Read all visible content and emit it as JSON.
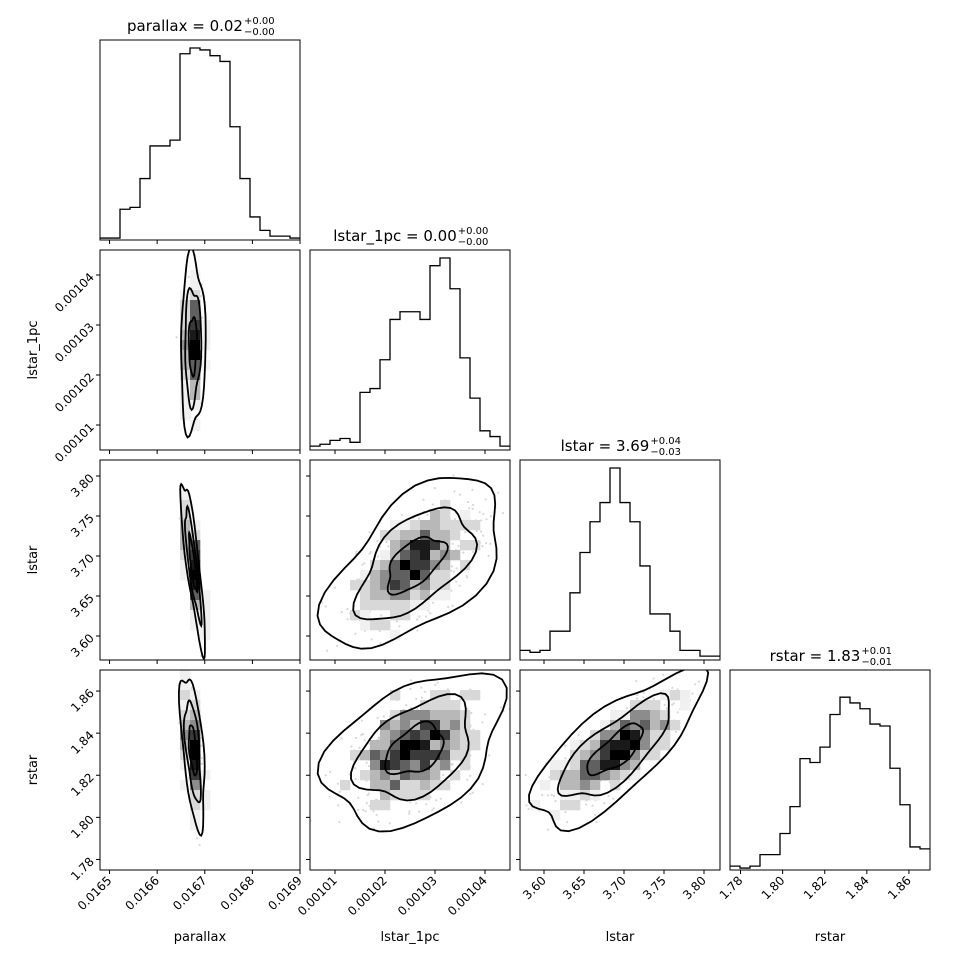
{
  "figure": "corner",
  "chart_data": {
    "type": "corner",
    "parameters": [
      "parallax",
      "lstar_1pc",
      "lstar",
      "rstar"
    ],
    "axis_labels": [
      "parallax",
      "lstar_1pc",
      "lstar",
      "rstar"
    ],
    "ranges": [
      [
        0.01648,
        0.0169
      ],
      [
        0.001005,
        0.001045
      ],
      [
        3.57,
        3.82
      ],
      [
        1.775,
        1.87
      ]
    ],
    "ticks": [
      [
        0.0165,
        0.0166,
        0.0167,
        0.0168,
        0.0169
      ],
      [
        0.00101,
        0.00102,
        0.00103,
        0.00104
      ],
      [
        3.6,
        3.65,
        3.7,
        3.75,
        3.8
      ],
      [
        1.78,
        1.8,
        1.82,
        1.84,
        1.86
      ]
    ],
    "tick_labels": [
      [
        "0.0165",
        "0.0166",
        "0.0167",
        "0.0168",
        "0.0169"
      ],
      [
        "0.00101",
        "0.00102",
        "0.00103",
        "0.00104"
      ],
      [
        "3.60",
        "3.65",
        "3.70",
        "3.75",
        "3.80"
      ],
      [
        "1.78",
        "1.80",
        "1.82",
        "1.84",
        "1.86"
      ]
    ],
    "titles": [
      {
        "name": "parallax",
        "median": "0.02",
        "plus": "+0.00",
        "minus": "−0.00"
      },
      {
        "name": "lstar_1pc",
        "median": "0.00",
        "plus": "+0.00",
        "minus": "−0.00"
      },
      {
        "name": "lstar",
        "median": "3.69",
        "plus": "+0.04",
        "minus": "−0.03"
      },
      {
        "name": "rstar",
        "median": "1.83",
        "plus": "+0.01",
        "minus": "−0.01"
      }
    ],
    "histograms": [
      [
        0.01,
        0.01,
        0.16,
        0.17,
        0.32,
        0.49,
        0.49,
        0.52,
        0.97,
        1.0,
        0.99,
        0.96,
        0.93,
        0.59,
        0.32,
        0.12,
        0.05,
        0.02,
        0.02,
        0.01
      ],
      [
        0.02,
        0.03,
        0.05,
        0.06,
        0.04,
        0.3,
        0.32,
        0.47,
        0.68,
        0.72,
        0.72,
        0.68,
        0.96,
        1.0,
        0.84,
        0.48,
        0.27,
        0.1,
        0.07,
        0.02
      ],
      [
        0.05,
        0.04,
        0.05,
        0.15,
        0.15,
        0.35,
        0.56,
        0.72,
        0.82,
        1.0,
        0.82,
        0.72,
        0.49,
        0.24,
        0.24,
        0.15,
        0.05,
        0.05,
        0.02,
        0.02
      ],
      [
        0.02,
        0.01,
        0.02,
        0.08,
        0.08,
        0.19,
        0.33,
        0.58,
        0.56,
        0.64,
        0.81,
        0.9,
        0.87,
        0.84,
        0.76,
        0.75,
        0.53,
        0.34,
        0.12,
        0.11
      ]
    ],
    "pairs": [
      {
        "x": 0,
        "y": 1,
        "cx": 0.016675,
        "cy": 0.001026,
        "sx": 8.5e-06,
        "sy": 5.8e-06,
        "rho": 0.05
      },
      {
        "x": 0,
        "y": 2,
        "cx": 0.016675,
        "cy": 3.69,
        "sx": 8.5e-06,
        "sy": 0.035,
        "rho": -0.85
      },
      {
        "x": 1,
        "y": 2,
        "cx": 0.001026,
        "cy": 3.69,
        "sx": 5.8e-06,
        "sy": 0.035,
        "rho": 0.55
      },
      {
        "x": 0,
        "y": 3,
        "cx": 0.016675,
        "cy": 1.832,
        "sx": 8.5e-06,
        "sy": 0.012,
        "rho": -0.55
      },
      {
        "x": 1,
        "y": 3,
        "cx": 0.001026,
        "cy": 1.832,
        "sx": 5.8e-06,
        "sy": 0.012,
        "rho": 0.4
      },
      {
        "x": 2,
        "y": 3,
        "cx": 3.69,
        "cy": 1.832,
        "sx": 0.035,
        "sy": 0.012,
        "rho": 0.75
      }
    ]
  }
}
